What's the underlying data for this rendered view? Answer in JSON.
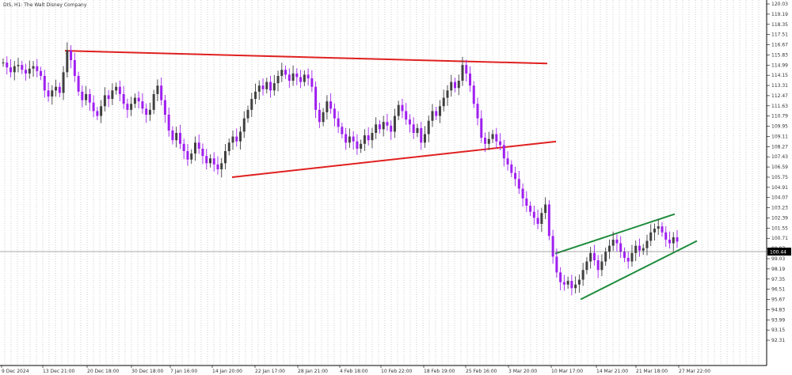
{
  "title": "DIS, H1:  The Walt Disney Company",
  "chart_data": {
    "type": "candlestick",
    "title": "DIS, H1:  The Walt Disney Company",
    "symbol": "DIS",
    "timeframe": "H1",
    "instrument": "The Walt Disney Company",
    "ylim": [
      91.5,
      120.5
    ],
    "grid": "vertical-dotted",
    "bull_color": "#404040",
    "bear_color": "#a020f0",
    "y_ticks": [
      120.03,
      119.19,
      118.35,
      117.51,
      116.67,
      115.83,
      114.99,
      114.15,
      113.31,
      112.47,
      111.63,
      110.79,
      109.95,
      109.11,
      108.27,
      107.43,
      106.59,
      105.75,
      104.91,
      104.07,
      103.23,
      102.39,
      101.55,
      100.71,
      99.87,
      99.03,
      98.19,
      97.35,
      96.51,
      95.67,
      94.83,
      93.99,
      93.15,
      92.31
    ],
    "current_price": 100.44,
    "current_price_label": "100.44",
    "x_labels": [
      "9 Dec 2024",
      "13 Dec 21:00",
      "20 Dec 18:00",
      "30 Dec 18:00",
      "7 Jan 16:00",
      "14 Jan 20:00",
      "22 Jan 17:00",
      "28 Jan 21:00",
      "4 Feb 18:00",
      "10 Feb 22:00",
      "18 Feb 19:00",
      "25 Feb 16:00",
      "3 Mar 20:00",
      "10 Mar 17:00",
      "14 Mar 21:00",
      "21 Mar 18:00",
      "27 Mar 22:00"
    ],
    "series": [
      {
        "values": [
          115.2,
          114.8,
          114.4,
          114.9,
          115.0,
          114.6,
          114.3,
          114.7,
          114.9,
          114.5,
          114.1,
          112.9,
          112.4,
          112.9,
          113.2,
          112.7,
          114.4,
          116.2,
          115.4,
          114.1,
          112.8,
          112.1,
          112.6,
          111.9,
          111.2,
          110.8,
          111.6,
          112.5,
          112.2,
          112.9,
          113.2,
          112.6,
          111.8,
          111.3,
          111.8,
          112.3,
          112.0,
          111.4,
          110.9,
          111.3,
          112.6,
          113.3,
          112.1,
          110.9,
          109.6,
          108.8,
          109.4,
          108.5,
          107.9,
          107.2,
          107.7,
          108.6,
          108.1,
          107.5,
          106.9,
          107.3,
          106.8,
          106.4,
          106.9,
          107.9,
          108.6,
          109.1,
          108.7,
          109.5,
          110.6,
          111.3,
          112.2,
          112.8,
          113.3,
          113.0,
          113.6,
          112.9,
          113.5,
          114.1,
          114.6,
          114.2,
          113.7,
          114.3,
          114.0,
          113.6,
          114.2,
          113.9,
          113.2,
          111.3,
          110.3,
          111.1,
          112.0,
          111.4,
          110.6,
          109.9,
          109.3,
          108.6,
          109.1,
          108.7,
          108.1,
          108.5,
          109.2,
          108.8,
          109.4,
          110.1,
          109.7,
          110.3,
          110.0,
          109.5,
          110.8,
          111.7,
          111.2,
          110.5,
          110.1,
          109.4,
          109.8,
          108.6,
          109.3,
          110.4,
          111.2,
          110.8,
          111.6,
          112.3,
          112.9,
          113.6,
          113.1,
          113.7,
          115.0,
          114.3,
          113.3,
          111.8,
          110.6,
          109.0,
          108.5,
          108.9,
          109.3,
          108.7,
          108.4,
          107.3,
          106.8,
          106.1,
          105.6,
          104.8,
          104.0,
          103.4,
          102.9,
          102.4,
          101.9,
          102.8,
          103.5,
          100.9,
          99.2,
          97.9,
          97.1,
          96.9,
          97.2,
          96.6,
          96.9,
          97.3,
          98.1,
          98.8,
          99.5,
          98.9,
          98.1,
          98.8,
          99.6,
          100.1,
          100.6,
          100.3,
          99.6,
          99.1,
          98.8,
          99.5,
          100.1,
          99.7,
          99.9,
          100.5,
          101.2,
          101.5,
          101.7,
          101.2,
          100.6,
          100.3,
          100.8,
          100.44
        ]
      }
    ],
    "trendlines": [
      {
        "name": "resistance",
        "color": "#e02020",
        "points": [
          [
            82,
            116.17
          ],
          [
            691,
            115.12
          ]
        ]
      },
      {
        "name": "support",
        "color": "#e02020",
        "points": [
          [
            293,
            105.75
          ],
          [
            702,
            108.69
          ]
        ]
      },
      {
        "name": "channel-upper",
        "color": "#1e8c3c",
        "points": [
          [
            701,
            99.45
          ],
          [
            852,
            102.71
          ]
        ]
      },
      {
        "name": "channel-lower",
        "color": "#1e8c3c",
        "points": [
          [
            733,
            95.67
          ],
          [
            880,
            100.5
          ]
        ]
      }
    ]
  }
}
